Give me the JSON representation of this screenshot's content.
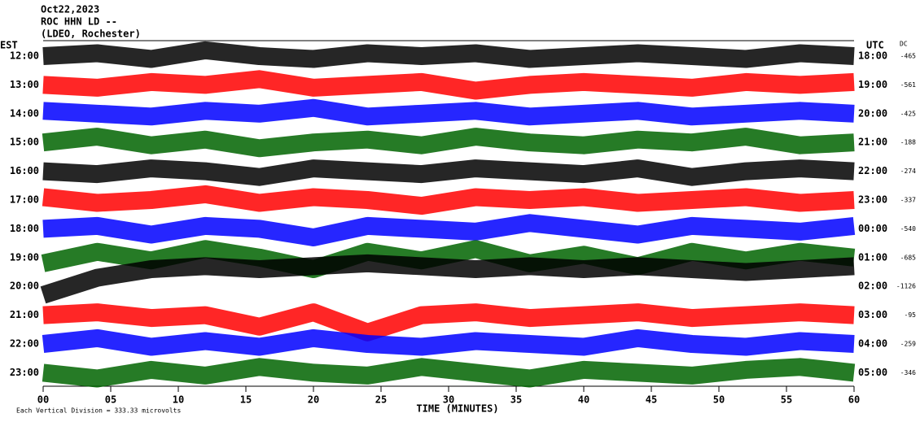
{
  "chart_data": {
    "type": "seismogram",
    "title": [
      "Oct22,2023",
      "ROC HHN LD --",
      "(LDEO, Rochester)"
    ],
    "left_axis_label": "EST",
    "right_axis_label": "UTC",
    "dc_label": "DC",
    "xlabel": "TIME (MINUTES)",
    "footnote": "Each Vertical Division =  333.33 microvolts",
    "xlim": [
      0,
      60
    ],
    "xticks": [
      {
        "value": 0,
        "label": "00"
      },
      {
        "value": 5,
        "label": "05"
      },
      10,
      15,
      20,
      25,
      30,
      35,
      40,
      45,
      50,
      55,
      60
    ],
    "x": [
      0,
      4,
      8,
      12,
      16,
      20,
      24,
      28,
      32,
      36,
      40,
      44,
      48,
      52,
      56,
      60
    ],
    "rows": [
      {
        "est": "12:00",
        "utc": "18:00",
        "dc": "-465",
        "color": "#000000",
        "values": [
          0,
          0.1,
          -0.1,
          0.2,
          0,
          -0.1,
          0.1,
          0,
          0.1,
          -0.1,
          0,
          0.1,
          0,
          -0.1,
          0.1,
          0
        ]
      },
      {
        "est": "13:00",
        "utc": "19:00",
        "dc": "-561",
        "color": "#ff0000",
        "values": [
          0,
          -0.1,
          0.1,
          0,
          0.2,
          -0.1,
          0,
          0.1,
          -0.2,
          0,
          0.1,
          0,
          -0.1,
          0.1,
          0,
          0.1
        ]
      },
      {
        "est": "14:00",
        "utc": "20:00",
        "dc": "-425",
        "color": "#0000ff",
        "values": [
          0.1,
          0,
          -0.1,
          0.1,
          0,
          0.2,
          -0.1,
          0,
          0.1,
          -0.1,
          0,
          0.1,
          -0.1,
          0,
          0.1,
          0
        ]
      },
      {
        "est": "15:00",
        "utc": "21:00",
        "dc": "-188",
        "color": "#006400",
        "values": [
          0,
          0.2,
          -0.1,
          0.1,
          -0.2,
          0,
          0.1,
          -0.1,
          0.2,
          0,
          -0.1,
          0.1,
          0,
          0.2,
          -0.1,
          0
        ]
      },
      {
        "est": "16:00",
        "utc": "22:00",
        "dc": "-274",
        "color": "#000000",
        "values": [
          0,
          -0.1,
          0.1,
          0,
          -0.2,
          0.1,
          0,
          -0.1,
          0.1,
          0,
          -0.1,
          0.1,
          -0.2,
          0,
          0.1,
          0
        ]
      },
      {
        "est": "17:00",
        "utc": "23:00",
        "dc": "-337",
        "color": "#ff0000",
        "values": [
          0.1,
          -0.1,
          0,
          0.2,
          -0.1,
          0.1,
          0,
          -0.2,
          0.1,
          0,
          0.1,
          -0.1,
          0,
          0.1,
          -0.1,
          0
        ]
      },
      {
        "est": "18:00",
        "utc": "00:00",
        "dc": "-540",
        "color": "#0000ff",
        "values": [
          0,
          0.1,
          -0.2,
          0.1,
          0,
          -0.3,
          0.1,
          0,
          -0.1,
          0.2,
          0,
          -0.2,
          0.1,
          0,
          -0.1,
          0.1
        ]
      },
      {
        "est": "19:00",
        "utc": "01:00",
        "dc": "-685",
        "color": "#006400",
        "values": [
          -0.2,
          0.2,
          -0.1,
          0.3,
          0,
          -0.4,
          0.2,
          -0.1,
          0.3,
          -0.2,
          0.1,
          -0.3,
          0.2,
          -0.1,
          0.2,
          0
        ]
      },
      {
        "est": "20:00",
        "utc": "02:00",
        "dc": "-1126",
        "color": "#000000",
        "values": [
          -0.3,
          0.3,
          0.6,
          0.7,
          0.6,
          0.7,
          0.8,
          0.7,
          0.6,
          0.7,
          0.6,
          0.7,
          0.6,
          0.5,
          0.6,
          0.7
        ]
      },
      {
        "est": "21:00",
        "utc": "03:00",
        "dc": "-95",
        "color": "#ff0000",
        "values": [
          0,
          0.1,
          -0.1,
          0,
          -0.4,
          0.1,
          -0.6,
          0,
          0.1,
          -0.1,
          0,
          0.1,
          -0.1,
          0,
          0.1,
          0
        ]
      },
      {
        "est": "22:00",
        "utc": "04:00",
        "dc": "-259",
        "color": "#0000ff",
        "values": [
          0,
          0.2,
          -0.1,
          0.1,
          -0.1,
          0.2,
          0,
          -0.1,
          0.1,
          0,
          -0.1,
          0.2,
          0,
          -0.1,
          0.1,
          0
        ]
      },
      {
        "est": "23:00",
        "utc": "05:00",
        "dc": "-346",
        "color": "#006400",
        "values": [
          0,
          -0.2,
          0.1,
          -0.1,
          0.2,
          0,
          -0.1,
          0.2,
          0,
          -0.2,
          0.1,
          0,
          -0.1,
          0.1,
          0.2,
          0
        ]
      }
    ]
  }
}
